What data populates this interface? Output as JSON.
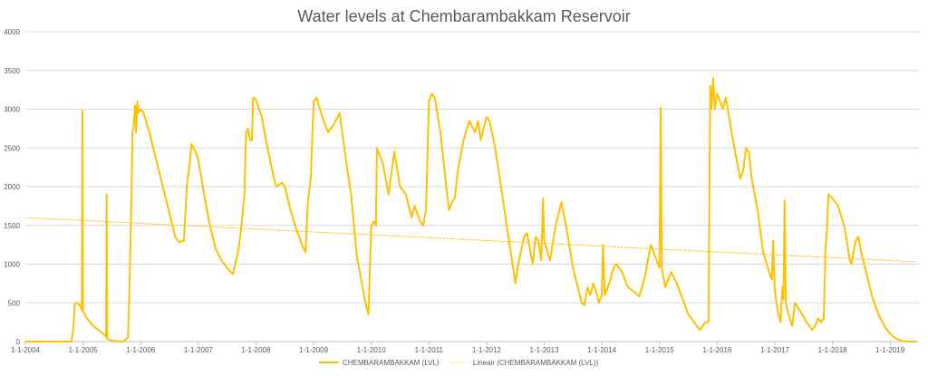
{
  "chart_data": {
    "type": "line",
    "title": "Water levels at Chembarambakkam Reservoir",
    "xlabel": "",
    "ylabel": "",
    "ylim": [
      0,
      4000
    ],
    "yticks": [
      0,
      500,
      1000,
      1500,
      2000,
      2500,
      3000,
      3500,
      4000
    ],
    "xticks": [
      "1-1-2004",
      "1-1-2005",
      "1-1-2006",
      "1-1-2007",
      "1-1-2008",
      "1-1-2009",
      "1-1-2010",
      "1-1-2011",
      "1-1-2012",
      "1-1-2013",
      "1-1-2014",
      "1-1-2015",
      "1-1-2016",
      "1-1-2017",
      "1-1-2018",
      "1-1-2019"
    ],
    "xlim_years": [
      2004.0,
      2019.5
    ],
    "grid": true,
    "legend_position": "bottom",
    "series": [
      {
        "name": "CHEMBARAMBAKKAM (LVL)",
        "color": "#FFC000",
        "style": "solid",
        "points": [
          [
            2004.0,
            0
          ],
          [
            2004.8,
            0
          ],
          [
            2004.83,
            150
          ],
          [
            2004.86,
            490
          ],
          [
            2004.9,
            500
          ],
          [
            2004.95,
            460
          ],
          [
            2004.98,
            400
          ],
          [
            2004.99,
            2980
          ],
          [
            2005.0,
            400
          ],
          [
            2005.05,
            320
          ],
          [
            2005.15,
            220
          ],
          [
            2005.25,
            160
          ],
          [
            2005.3,
            130
          ],
          [
            2005.35,
            100
          ],
          [
            2005.4,
            60
          ],
          [
            2005.41,
            1900
          ],
          [
            2005.42,
            40
          ],
          [
            2005.5,
            10
          ],
          [
            2005.7,
            0
          ],
          [
            2005.78,
            50
          ],
          [
            2005.8,
            500
          ],
          [
            2005.83,
            1500
          ],
          [
            2005.86,
            2700
          ],
          [
            2005.88,
            2800
          ],
          [
            2005.9,
            3050
          ],
          [
            2005.92,
            2700
          ],
          [
            2005.94,
            3100
          ],
          [
            2005.96,
            2950
          ],
          [
            2006.0,
            3000
          ],
          [
            2006.05,
            2950
          ],
          [
            2006.15,
            2700
          ],
          [
            2006.25,
            2400
          ],
          [
            2006.35,
            2100
          ],
          [
            2006.45,
            1800
          ],
          [
            2006.55,
            1500
          ],
          [
            2006.6,
            1350
          ],
          [
            2006.65,
            1300
          ],
          [
            2006.68,
            1280
          ],
          [
            2006.72,
            1300
          ],
          [
            2006.75,
            1300
          ],
          [
            2006.8,
            2000
          ],
          [
            2006.85,
            2300
          ],
          [
            2006.88,
            2550
          ],
          [
            2006.95,
            2450
          ],
          [
            2007.0,
            2350
          ],
          [
            2007.1,
            1900
          ],
          [
            2007.2,
            1500
          ],
          [
            2007.3,
            1200
          ],
          [
            2007.4,
            1050
          ],
          [
            2007.5,
            950
          ],
          [
            2007.6,
            870
          ],
          [
            2007.7,
            1200
          ],
          [
            2007.75,
            1500
          ],
          [
            2007.8,
            1900
          ],
          [
            2007.83,
            2700
          ],
          [
            2007.86,
            2750
          ],
          [
            2007.9,
            2600
          ],
          [
            2007.93,
            2600
          ],
          [
            2007.95,
            3150
          ],
          [
            2008.0,
            3120
          ],
          [
            2008.1,
            2900
          ],
          [
            2008.2,
            2500
          ],
          [
            2008.3,
            2150
          ],
          [
            2008.35,
            2000
          ],
          [
            2008.45,
            2050
          ],
          [
            2008.5,
            2000
          ],
          [
            2008.6,
            1700
          ],
          [
            2008.7,
            1450
          ],
          [
            2008.8,
            1250
          ],
          [
            2008.86,
            1150
          ],
          [
            2008.9,
            1800
          ],
          [
            2008.95,
            2100
          ],
          [
            2009.0,
            3100
          ],
          [
            2009.05,
            3150
          ],
          [
            2009.15,
            2900
          ],
          [
            2009.25,
            2700
          ],
          [
            2009.35,
            2800
          ],
          [
            2009.45,
            2950
          ],
          [
            2009.55,
            2400
          ],
          [
            2009.65,
            1900
          ],
          [
            2009.75,
            1100
          ],
          [
            2009.8,
            900
          ],
          [
            2009.85,
            700
          ],
          [
            2009.9,
            500
          ],
          [
            2009.95,
            350
          ],
          [
            2010.0,
            1500
          ],
          [
            2010.05,
            1550
          ],
          [
            2010.08,
            1500
          ],
          [
            2010.1,
            2500
          ],
          [
            2010.2,
            2300
          ],
          [
            2010.3,
            1900
          ],
          [
            2010.4,
            2450
          ],
          [
            2010.5,
            2000
          ],
          [
            2010.6,
            1900
          ],
          [
            2010.7,
            1600
          ],
          [
            2010.75,
            1750
          ],
          [
            2010.85,
            1550
          ],
          [
            2010.9,
            1500
          ],
          [
            2010.95,
            1700
          ],
          [
            2011.0,
            3100
          ],
          [
            2011.05,
            3200
          ],
          [
            2011.1,
            3150
          ],
          [
            2011.2,
            2700
          ],
          [
            2011.3,
            2000
          ],
          [
            2011.35,
            1700
          ],
          [
            2011.4,
            1800
          ],
          [
            2011.45,
            1850
          ],
          [
            2011.5,
            2200
          ],
          [
            2011.6,
            2600
          ],
          [
            2011.7,
            2850
          ],
          [
            2011.8,
            2700
          ],
          [
            2011.85,
            2850
          ],
          [
            2011.9,
            2600
          ],
          [
            2012.0,
            2900
          ],
          [
            2012.05,
            2850
          ],
          [
            2012.15,
            2500
          ],
          [
            2012.25,
            2000
          ],
          [
            2012.35,
            1500
          ],
          [
            2012.45,
            1000
          ],
          [
            2012.5,
            750
          ],
          [
            2012.55,
            1000
          ],
          [
            2012.65,
            1350
          ],
          [
            2012.7,
            1400
          ],
          [
            2012.8,
            1000
          ],
          [
            2012.85,
            1350
          ],
          [
            2012.9,
            1300
          ],
          [
            2012.95,
            1050
          ],
          [
            2012.98,
            1850
          ],
          [
            2013.0,
            1300
          ],
          [
            2013.1,
            1050
          ],
          [
            2013.2,
            1500
          ],
          [
            2013.3,
            1800
          ],
          [
            2013.4,
            1400
          ],
          [
            2013.5,
            950
          ],
          [
            2013.6,
            650
          ],
          [
            2013.65,
            500
          ],
          [
            2013.7,
            470
          ],
          [
            2013.75,
            700
          ],
          [
            2013.8,
            600
          ],
          [
            2013.85,
            750
          ],
          [
            2013.9,
            650
          ],
          [
            2013.95,
            500
          ],
          [
            2014.0,
            600
          ],
          [
            2014.02,
            1250
          ],
          [
            2014.05,
            600
          ],
          [
            2014.1,
            700
          ],
          [
            2014.15,
            800
          ],
          [
            2014.2,
            950
          ],
          [
            2014.25,
            1000
          ],
          [
            2014.35,
            900
          ],
          [
            2014.4,
            800
          ],
          [
            2014.45,
            700
          ],
          [
            2014.55,
            650
          ],
          [
            2014.65,
            580
          ],
          [
            2014.75,
            850
          ],
          [
            2014.85,
            1250
          ],
          [
            2014.9,
            1150
          ],
          [
            2015.0,
            950
          ],
          [
            2015.02,
            3020
          ],
          [
            2015.04,
            950
          ],
          [
            2015.1,
            700
          ],
          [
            2015.2,
            900
          ],
          [
            2015.3,
            750
          ],
          [
            2015.4,
            550
          ],
          [
            2015.5,
            350
          ],
          [
            2015.6,
            250
          ],
          [
            2015.7,
            150
          ],
          [
            2015.75,
            200
          ],
          [
            2015.8,
            250
          ],
          [
            2015.85,
            250
          ],
          [
            2015.88,
            3300
          ],
          [
            2015.9,
            3000
          ],
          [
            2015.93,
            3400
          ],
          [
            2015.96,
            3000
          ],
          [
            2016.0,
            3200
          ],
          [
            2016.1,
            3000
          ],
          [
            2016.15,
            3150
          ],
          [
            2016.25,
            2700
          ],
          [
            2016.35,
            2300
          ],
          [
            2016.4,
            2100
          ],
          [
            2016.45,
            2200
          ],
          [
            2016.5,
            2500
          ],
          [
            2016.55,
            2450
          ],
          [
            2016.6,
            2100
          ],
          [
            2016.7,
            1700
          ],
          [
            2016.8,
            1150
          ],
          [
            2016.9,
            900
          ],
          [
            2016.95,
            800
          ],
          [
            2016.97,
            1300
          ],
          [
            2017.0,
            650
          ],
          [
            2017.05,
            400
          ],
          [
            2017.1,
            250
          ],
          [
            2017.13,
            700
          ],
          [
            2017.15,
            550
          ],
          [
            2017.17,
            1820
          ],
          [
            2017.19,
            500
          ],
          [
            2017.25,
            320
          ],
          [
            2017.3,
            200
          ],
          [
            2017.35,
            500
          ],
          [
            2017.45,
            380
          ],
          [
            2017.55,
            250
          ],
          [
            2017.65,
            150
          ],
          [
            2017.7,
            200
          ],
          [
            2017.75,
            300
          ],
          [
            2017.8,
            250
          ],
          [
            2017.85,
            300
          ],
          [
            2017.88,
            1200
          ],
          [
            2017.9,
            1400
          ],
          [
            2017.93,
            1900
          ],
          [
            2018.0,
            1850
          ],
          [
            2018.1,
            1750
          ],
          [
            2018.2,
            1500
          ],
          [
            2018.25,
            1300
          ],
          [
            2018.3,
            1050
          ],
          [
            2018.33,
            1000
          ],
          [
            2018.4,
            1300
          ],
          [
            2018.45,
            1350
          ],
          [
            2018.5,
            1150
          ],
          [
            2018.6,
            850
          ],
          [
            2018.7,
            550
          ],
          [
            2018.8,
            350
          ],
          [
            2018.9,
            200
          ],
          [
            2019.0,
            100
          ],
          [
            2019.1,
            40
          ],
          [
            2019.2,
            10
          ],
          [
            2019.3,
            0
          ],
          [
            2019.45,
            0
          ]
        ]
      },
      {
        "name": "Lineair (CHEMBARAMBAKKAM (LVL))",
        "color": "#FFC000",
        "style": "dotted",
        "points": [
          [
            2004.0,
            1600
          ],
          [
            2019.45,
            1030
          ]
        ]
      }
    ]
  }
}
